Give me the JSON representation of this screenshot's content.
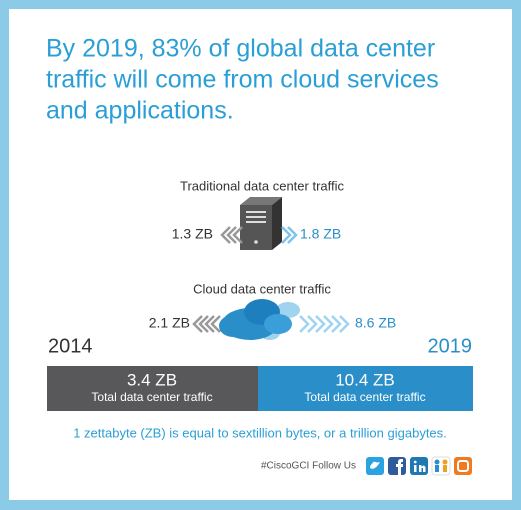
{
  "header": {
    "title_lines": [
      "By 2019, 83% of global data center",
      "traffic will come from cloud services",
      "and applications."
    ]
  },
  "traditional": {
    "label": "Traditional data center traffic",
    "left": "1.3 ZB",
    "right": "1.8 ZB"
  },
  "cloud": {
    "label": "Cloud data center traffic",
    "left": "2.1 ZB",
    "right": "8.6 ZB"
  },
  "years": {
    "left": "2014",
    "right": "2019"
  },
  "totals": [
    {
      "value": "3.4 ZB",
      "caption": "Total data center traffic"
    },
    {
      "value": "10.4 ZB",
      "caption": "Total data center traffic"
    }
  ],
  "footnote": "1 zettabyte (ZB) is equal to sextillion bytes, or a trillion gigabytes.",
  "footer": {
    "text": "#CiscoGCI  Follow Us"
  }
}
